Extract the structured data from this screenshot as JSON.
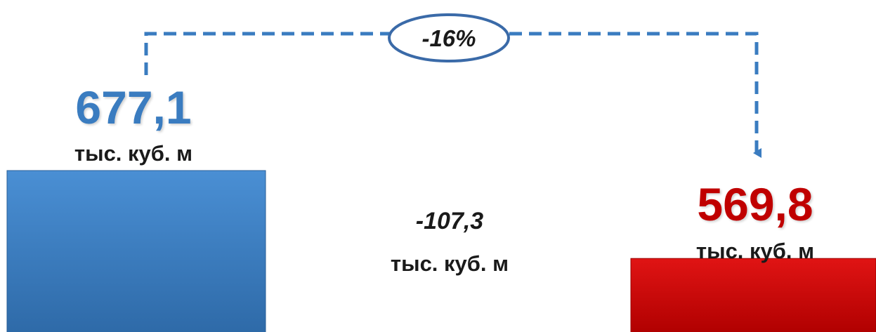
{
  "chart_data": {
    "type": "bar",
    "categories": [
      "",
      ""
    ],
    "values": [
      677.1,
      569.8
    ],
    "value_labels": [
      "677,1",
      "569,8"
    ],
    "unit": "тыс. куб. м",
    "colors": [
      "#3a7cc0",
      "#cc0a0a"
    ],
    "value_label_colors": [
      "#3a7cc0",
      "#c00000"
    ],
    "difference": {
      "value": "-107,3",
      "unit": "тыс. куб. м"
    },
    "change_percent": "-16%",
    "title": "",
    "xlabel": "",
    "ylabel": "",
    "ylim": [
      480,
      690
    ],
    "grid": false
  }
}
